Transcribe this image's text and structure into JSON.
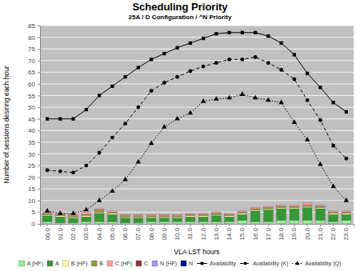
{
  "chart_data": {
    "type": "bar",
    "title": "Scheduling Priority",
    "subtitle": "25A / D Configuration / ^N Priority",
    "x_label": "VLA LST hours",
    "y_label": "Number of sessions desiring each hour",
    "categories": [
      "00.0",
      "01.0",
      "02.0",
      "03.0",
      "04.0",
      "05.0",
      "06.0",
      "07.0",
      "08.0",
      "09.0",
      "10.0",
      "11.0",
      "12.0",
      "13.0",
      "14.0",
      "15.0",
      "16.0",
      "17.0",
      "18.0",
      "19.0",
      "20.0",
      "21.0",
      "22.0",
      "23.0"
    ],
    "stacked": true,
    "grid": true,
    "legend": "bottom",
    "ylim": [
      0,
      85
    ],
    "yticks": [
      0,
      5,
      10,
      15,
      20,
      25,
      30,
      35,
      40,
      45,
      50,
      55,
      60,
      65,
      70,
      75,
      80,
      85
    ],
    "series": [
      {
        "name": "A (HF)",
        "type": "bar",
        "color": "#99ee99",
        "values": [
          1,
          0.5,
          0.5,
          1,
          1,
          1,
          0.5,
          0.5,
          1,
          1,
          1,
          1,
          1,
          1,
          1,
          1.5,
          1,
          1,
          1.5,
          1.5,
          1.5,
          1.5,
          1,
          1.5
        ]
      },
      {
        "name": "A",
        "type": "bar",
        "color": "#339933",
        "values": [
          2.5,
          2.5,
          2,
          2,
          3.5,
          3,
          2,
          2,
          1.5,
          1.5,
          1.5,
          2,
          2,
          2.5,
          2,
          2.5,
          4.5,
          5,
          5,
          5,
          5.5,
          5,
          3,
          2.5
        ]
      },
      {
        "name": "B (HF)",
        "type": "bar",
        "color": "#ffff99",
        "values": [
          0.5,
          0.5,
          0.5,
          0.5,
          0.5,
          0.5,
          0.5,
          0.5,
          0.5,
          0.5,
          0.5,
          0.5,
          0.5,
          0.5,
          0.5,
          0.5,
          0.5,
          0.5,
          0.5,
          0.5,
          0.5,
          0.5,
          0.5,
          0.5
        ]
      },
      {
        "name": "B",
        "type": "bar",
        "color": "#999933",
        "values": [
          0.5,
          0.5,
          0.5,
          0.5,
          1,
          0.5,
          0.5,
          0.5,
          0.5,
          0.5,
          0.5,
          0.5,
          0.5,
          0.5,
          0.5,
          0.5,
          0.5,
          0.5,
          0.5,
          0.5,
          0.5,
          0.5,
          0.5,
          0.5
        ]
      },
      {
        "name": "C (HF)",
        "type": "bar",
        "color": "#ff9999",
        "values": [
          0.5,
          0.5,
          0.5,
          1,
          0.5,
          0.5,
          0.5,
          0.5,
          0.5,
          0.5,
          0.5,
          0.5,
          0.5,
          0.5,
          0.5,
          0.5,
          0.5,
          0.5,
          0.5,
          0.5,
          1,
          0.5,
          0.5,
          0.5
        ]
      },
      {
        "name": "C",
        "type": "bar",
        "color": "#993333",
        "values": [
          0,
          0,
          0,
          0,
          0,
          0,
          0,
          0,
          0,
          0,
          0,
          0,
          0,
          0,
          0,
          0,
          0,
          0,
          0,
          0,
          0,
          0,
          0,
          0
        ]
      },
      {
        "name": "N (HF)",
        "type": "bar",
        "color": "#9999ff",
        "values": [
          0,
          0,
          0,
          0,
          0,
          0,
          0,
          0,
          0,
          0,
          0,
          0,
          0,
          0,
          0,
          0,
          0,
          0,
          0,
          0,
          0,
          0,
          0,
          0
        ]
      },
      {
        "name": "N",
        "type": "bar",
        "color": "#000099",
        "values": [
          0,
          0,
          0,
          0,
          0,
          0,
          0,
          0,
          0,
          0,
          0,
          0,
          0,
          0,
          0,
          0,
          0,
          0,
          0,
          0,
          0,
          0,
          0,
          0
        ]
      },
      {
        "name": "Availability",
        "type": "line",
        "color": "#000000",
        "marker": "square",
        "line_style": "solid",
        "values": [
          45,
          45,
          45,
          49,
          55,
          59,
          63,
          67,
          70.5,
          73,
          75.5,
          77.5,
          79.5,
          81.5,
          82,
          82,
          82,
          80.5,
          77.5,
          72.5,
          64.5,
          58.5,
          52,
          48
        ]
      },
      {
        "name": "Availability (K)",
        "type": "line",
        "color": "#000000",
        "marker": "circle",
        "line_style": "dashed",
        "values": [
          23,
          22.5,
          22,
          25,
          30.5,
          37,
          43,
          50,
          57,
          60.5,
          63,
          65.5,
          67.5,
          69,
          70.5,
          70.5,
          71.5,
          69,
          66,
          62,
          53,
          44.5,
          33.5,
          28
        ]
      },
      {
        "name": "Availability (Q)",
        "type": "line",
        "color": "#000000",
        "marker": "triangle",
        "line_style": "dotted",
        "values": [
          5.5,
          4.5,
          4.5,
          6,
          10,
          14,
          19,
          26.5,
          34.5,
          41.5,
          45,
          47.5,
          52.5,
          53.5,
          54,
          55.5,
          54,
          53,
          52,
          43.5,
          36,
          25.5,
          16,
          10
        ]
      }
    ]
  }
}
